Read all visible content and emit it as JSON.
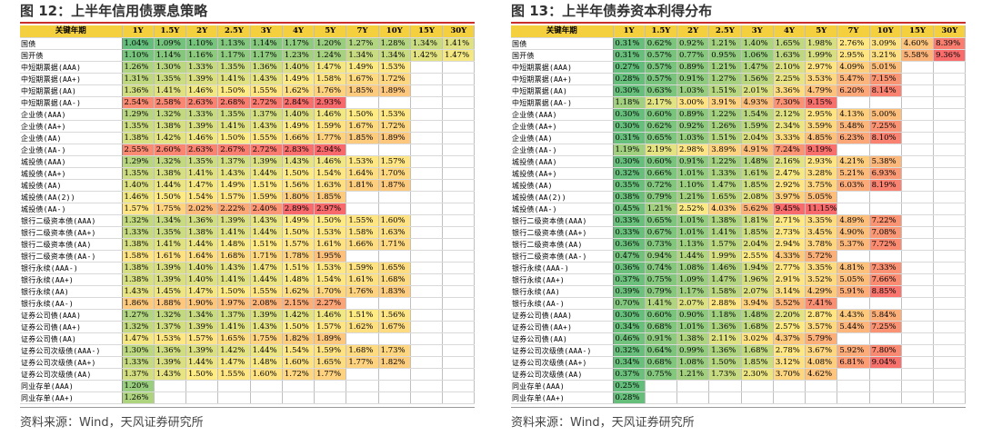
{
  "left": {
    "title": "图 12：上半年信用债票息策略",
    "corner": "关键年期",
    "columns": [
      "1Y",
      "1.5Y",
      "2Y",
      "2.5Y",
      "3Y",
      "4Y",
      "5Y",
      "7Y",
      "10Y",
      "15Y",
      "30Y"
    ],
    "rows": [
      {
        "label": "国债",
        "values": [
          "1.04%",
          "1.09%",
          "1.10%",
          "1.13%",
          "1.14%",
          "1.17%",
          "1.20%",
          "1.27%",
          "1.28%",
          "1.34%",
          "1.41%"
        ]
      },
      {
        "label": "国开债",
        "values": [
          "1.10%",
          "1.14%",
          "1.16%",
          "1.17%",
          "1.17%",
          "1.23%",
          "1.24%",
          "1.34%",
          "1.34%",
          "1.42%",
          "1.47%"
        ]
      },
      {
        "label": "中短期票据(AAA)",
        "values": [
          "1.26%",
          "1.30%",
          "1.33%",
          "1.35%",
          "1.36%",
          "1.40%",
          "1.47%",
          "1.49%",
          "1.53%",
          "",
          ""
        ],
        "group_start": true
      },
      {
        "label": "中短期票据(AA+)",
        "values": [
          "1.31%",
          "1.35%",
          "1.39%",
          "1.41%",
          "1.43%",
          "1.49%",
          "1.58%",
          "1.67%",
          "1.72%",
          "",
          ""
        ]
      },
      {
        "label": "中短期票据(AA)",
        "values": [
          "1.36%",
          "1.41%",
          "1.46%",
          "1.50%",
          "1.55%",
          "1.62%",
          "1.76%",
          "1.85%",
          "1.89%",
          "",
          ""
        ]
      },
      {
        "label": "中短期票据(AA-)",
        "values": [
          "2.54%",
          "2.58%",
          "2.63%",
          "2.68%",
          "2.72%",
          "2.84%",
          "2.93%",
          "",
          "",
          "",
          ""
        ]
      },
      {
        "label": "企业债(AAA)",
        "values": [
          "1.29%",
          "1.32%",
          "1.33%",
          "1.35%",
          "1.37%",
          "1.40%",
          "1.46%",
          "1.50%",
          "1.53%",
          "",
          ""
        ],
        "group_start": true
      },
      {
        "label": "企业债(AA+)",
        "values": [
          "1.35%",
          "1.38%",
          "1.39%",
          "1.41%",
          "1.43%",
          "1.49%",
          "1.59%",
          "1.67%",
          "1.72%",
          "",
          ""
        ]
      },
      {
        "label": "企业债(AA)",
        "values": [
          "1.38%",
          "1.42%",
          "1.46%",
          "1.50%",
          "1.55%",
          "1.66%",
          "1.77%",
          "1.85%",
          "1.89%",
          "",
          ""
        ]
      },
      {
        "label": "企业债(AA-)",
        "values": [
          "2.55%",
          "2.60%",
          "2.63%",
          "2.67%",
          "2.72%",
          "2.83%",
          "2.94%",
          "",
          "",
          "",
          ""
        ]
      },
      {
        "label": "城投债(AAA)",
        "values": [
          "1.29%",
          "1.32%",
          "1.35%",
          "1.37%",
          "1.39%",
          "1.43%",
          "1.46%",
          "1.53%",
          "1.57%",
          "",
          ""
        ],
        "group_start": true
      },
      {
        "label": "城投债(AA+)",
        "values": [
          "1.35%",
          "1.38%",
          "1.41%",
          "1.43%",
          "1.44%",
          "1.50%",
          "1.54%",
          "1.64%",
          "1.70%",
          "",
          ""
        ]
      },
      {
        "label": "城投债(AA)",
        "values": [
          "1.40%",
          "1.44%",
          "1.47%",
          "1.49%",
          "1.51%",
          "1.56%",
          "1.63%",
          "1.81%",
          "1.87%",
          "",
          ""
        ]
      },
      {
        "label": "城投债(AA(2))",
        "values": [
          "1.46%",
          "1.50%",
          "1.54%",
          "1.57%",
          "1.59%",
          "1.80%",
          "1.85%",
          "",
          "",
          "",
          ""
        ]
      },
      {
        "label": "城投债(AA-)",
        "values": [
          "1.57%",
          "1.75%",
          "2.02%",
          "2.22%",
          "2.40%",
          "2.89%",
          "2.97%",
          "",
          "",
          "",
          ""
        ]
      },
      {
        "label": "银行二级资本债(AAA)",
        "values": [
          "1.32%",
          "1.34%",
          "1.36%",
          "1.39%",
          "1.43%",
          "1.49%",
          "1.50%",
          "1.55%",
          "1.60%",
          "",
          ""
        ],
        "group_start": true
      },
      {
        "label": "银行二级资本债(AA+)",
        "values": [
          "1.33%",
          "1.35%",
          "1.38%",
          "1.41%",
          "1.44%",
          "1.50%",
          "1.53%",
          "1.58%",
          "1.63%",
          "",
          ""
        ]
      },
      {
        "label": "银行二级资本债(AA)",
        "values": [
          "1.38%",
          "1.41%",
          "1.44%",
          "1.48%",
          "1.51%",
          "1.57%",
          "1.61%",
          "1.66%",
          "1.71%",
          "",
          ""
        ]
      },
      {
        "label": "银行二级资本债(AA-)",
        "values": [
          "1.58%",
          "1.61%",
          "1.64%",
          "1.68%",
          "1.71%",
          "1.78%",
          "1.95%",
          "",
          "",
          "",
          ""
        ]
      },
      {
        "label": "银行永续(AAA-)",
        "values": [
          "1.38%",
          "1.39%",
          "1.40%",
          "1.43%",
          "1.47%",
          "1.51%",
          "1.53%",
          "1.59%",
          "1.65%",
          "",
          ""
        ],
        "group_start": true
      },
      {
        "label": "银行永续(AA+)",
        "values": [
          "1.38%",
          "1.39%",
          "1.40%",
          "1.41%",
          "1.44%",
          "1.48%",
          "1.54%",
          "1.61%",
          "1.68%",
          "",
          ""
        ]
      },
      {
        "label": "银行永续(AA)",
        "values": [
          "1.43%",
          "1.45%",
          "1.47%",
          "1.50%",
          "1.55%",
          "1.62%",
          "1.70%",
          "1.76%",
          "1.83%",
          "",
          ""
        ]
      },
      {
        "label": "银行永续(AA-)",
        "values": [
          "1.86%",
          "1.88%",
          "1.90%",
          "1.97%",
          "2.08%",
          "2.15%",
          "2.27%",
          "",
          "",
          "",
          ""
        ]
      },
      {
        "label": "证券公司债(AAA)",
        "values": [
          "1.27%",
          "1.32%",
          "1.34%",
          "1.37%",
          "1.39%",
          "1.42%",
          "1.46%",
          "1.51%",
          "1.56%",
          "",
          ""
        ],
        "group_start": true
      },
      {
        "label": "证券公司债(AA+)",
        "values": [
          "1.32%",
          "1.37%",
          "1.39%",
          "1.41%",
          "1.43%",
          "1.50%",
          "1.57%",
          "1.62%",
          "1.67%",
          "",
          ""
        ]
      },
      {
        "label": "证券公司债(AA)",
        "values": [
          "1.47%",
          "1.53%",
          "1.57%",
          "1.65%",
          "1.75%",
          "1.82%",
          "1.89%",
          "",
          "",
          "",
          ""
        ]
      },
      {
        "label": "证券公司次级债(AAA-)",
        "values": [
          "1.30%",
          "1.36%",
          "1.39%",
          "1.42%",
          "1.44%",
          "1.54%",
          "1.59%",
          "1.68%",
          "1.73%",
          "",
          ""
        ],
        "group_start": true
      },
      {
        "label": "证券公司次级债(AA+)",
        "values": [
          "1.33%",
          "1.39%",
          "1.44%",
          "1.47%",
          "1.48%",
          "1.60%",
          "1.65%",
          "1.77%",
          "1.82%",
          "",
          ""
        ]
      },
      {
        "label": "证券公司次级债(AA)",
        "values": [
          "1.37%",
          "1.43%",
          "1.50%",
          "1.55%",
          "1.60%",
          "1.72%",
          "1.77%",
          "",
          "",
          "",
          ""
        ]
      },
      {
        "label": "同业存单(AAA)",
        "values": [
          "1.20%",
          "",
          "",
          "",
          "",
          "",
          "",
          "",
          "",
          "",
          ""
        ],
        "group_start": true
      },
      {
        "label": "同业存单(AA+)",
        "values": [
          "1.26%",
          "",
          "",
          "",
          "",
          "",
          "",
          "",
          "",
          "",
          ""
        ]
      }
    ],
    "source": "资料来源：Wind，天风证券研究所"
  },
  "right": {
    "title": "图 13：上半年债券资本利得分布",
    "corner": "关键年期",
    "columns": [
      "1Y",
      "1.5Y",
      "2Y",
      "2.5Y",
      "3Y",
      "4Y",
      "5Y",
      "7Y",
      "10Y",
      "15Y",
      "30Y"
    ],
    "rows": [
      {
        "label": "国债",
        "values": [
          "0.31%",
          "0.62%",
          "0.92%",
          "1.21%",
          "1.40%",
          "1.65%",
          "1.98%",
          "2.76%",
          "3.09%",
          "4.60%",
          "8.39%"
        ]
      },
      {
        "label": "国开债",
        "values": [
          "0.31%",
          "0.57%",
          "0.77%",
          "0.95%",
          "1.06%",
          "1.63%",
          "1.99%",
          "2.95%",
          "3.21%",
          "5.58%",
          "9.36%"
        ]
      },
      {
        "label": "中短期票据(AAA)",
        "values": [
          "0.27%",
          "0.57%",
          "0.89%",
          "1.21%",
          "1.47%",
          "2.10%",
          "2.97%",
          "4.09%",
          "5.01%",
          "",
          ""
        ],
        "group_start": true
      },
      {
        "label": "中短期票据(AA+)",
        "values": [
          "0.28%",
          "0.57%",
          "0.91%",
          "1.27%",
          "1.56%",
          "2.25%",
          "3.53%",
          "5.47%",
          "7.15%",
          "",
          ""
        ]
      },
      {
        "label": "中短期票据(AA)",
        "values": [
          "0.30%",
          "0.63%",
          "1.03%",
          "1.51%",
          "2.01%",
          "3.36%",
          "4.79%",
          "6.20%",
          "8.14%",
          "",
          ""
        ]
      },
      {
        "label": "中短期票据(AA-)",
        "values": [
          "1.18%",
          "2.17%",
          "3.00%",
          "3.91%",
          "4.93%",
          "7.30%",
          "9.15%",
          "",
          "",
          "",
          ""
        ]
      },
      {
        "label": "企业债(AAA)",
        "values": [
          "0.30%",
          "0.60%",
          "0.89%",
          "1.22%",
          "1.54%",
          "2.12%",
          "2.95%",
          "4.13%",
          "5.00%",
          "",
          ""
        ],
        "group_start": true
      },
      {
        "label": "企业债(AA+)",
        "values": [
          "0.30%",
          "0.62%",
          "0.92%",
          "1.26%",
          "1.59%",
          "2.34%",
          "3.59%",
          "5.48%",
          "7.25%",
          "",
          ""
        ]
      },
      {
        "label": "企业债(AA)",
        "values": [
          "0.31%",
          "0.65%",
          "1.03%",
          "1.51%",
          "2.04%",
          "3.33%",
          "4.85%",
          "6.23%",
          "8.10%",
          "",
          ""
        ]
      },
      {
        "label": "企业债(AA-)",
        "values": [
          "1.19%",
          "2.19%",
          "2.98%",
          "3.89%",
          "4.91%",
          "7.24%",
          "9.19%",
          "",
          "",
          "",
          ""
        ]
      },
      {
        "label": "城投债(AAA)",
        "values": [
          "0.30%",
          "0.60%",
          "0.91%",
          "1.22%",
          "1.48%",
          "2.16%",
          "2.93%",
          "4.21%",
          "5.38%",
          "",
          ""
        ],
        "group_start": true
      },
      {
        "label": "城投债(AA+)",
        "values": [
          "0.32%",
          "0.66%",
          "1.01%",
          "1.33%",
          "1.61%",
          "2.47%",
          "3.28%",
          "5.21%",
          "6.93%",
          "",
          ""
        ]
      },
      {
        "label": "城投债(AA)",
        "values": [
          "0.35%",
          "0.72%",
          "1.10%",
          "1.47%",
          "1.85%",
          "2.92%",
          "3.75%",
          "6.03%",
          "8.19%",
          "",
          ""
        ]
      },
      {
        "label": "城投债(AA(2))",
        "values": [
          "0.38%",
          "0.79%",
          "1.21%",
          "1.65%",
          "2.08%",
          "3.97%",
          "5.05%",
          "",
          "",
          "",
          ""
        ]
      },
      {
        "label": "城投债(AA-)",
        "values": [
          "0.45%",
          "1.21%",
          "2.52%",
          "4.03%",
          "5.62%",
          "9.45%",
          "11.15%",
          "",
          "",
          "",
          ""
        ]
      },
      {
        "label": "银行二级资本债(AAA)",
        "values": [
          "0.33%",
          "0.65%",
          "1.01%",
          "1.38%",
          "1.81%",
          "2.71%",
          "3.35%",
          "4.89%",
          "7.22%",
          "",
          ""
        ],
        "group_start": true
      },
      {
        "label": "银行二级资本债(AA+)",
        "values": [
          "0.33%",
          "0.67%",
          "1.01%",
          "1.41%",
          "1.85%",
          "2.73%",
          "3.45%",
          "4.90%",
          "7.08%",
          "",
          ""
        ]
      },
      {
        "label": "银行二级资本债(AA)",
        "values": [
          "0.36%",
          "0.73%",
          "1.13%",
          "1.57%",
          "2.04%",
          "2.94%",
          "3.78%",
          "5.37%",
          "7.72%",
          "",
          ""
        ]
      },
      {
        "label": "银行二级资本债(AA-)",
        "values": [
          "0.47%",
          "0.94%",
          "1.44%",
          "1.99%",
          "2.55%",
          "4.33%",
          "5.72%",
          "",
          "",
          "",
          ""
        ]
      },
      {
        "label": "银行永续(AAA-)",
        "values": [
          "0.36%",
          "0.74%",
          "1.08%",
          "1.46%",
          "1.94%",
          "2.77%",
          "3.35%",
          "4.81%",
          "7.33%",
          "",
          ""
        ],
        "group_start": true
      },
      {
        "label": "银行永续(AA+)",
        "values": [
          "0.37%",
          "0.75%",
          "1.09%",
          "1.47%",
          "1.96%",
          "2.91%",
          "3.52%",
          "5.05%",
          "7.66%",
          "",
          ""
        ]
      },
      {
        "label": "银行永续(AA)",
        "values": [
          "0.39%",
          "0.79%",
          "1.17%",
          "1.58%",
          "2.07%",
          "3.14%",
          "4.29%",
          "5.91%",
          "8.85%",
          "",
          ""
        ]
      },
      {
        "label": "银行永续(AA-)",
        "values": [
          "0.70%",
          "1.41%",
          "2.07%",
          "2.88%",
          "3.94%",
          "5.52%",
          "7.41%",
          "",
          "",
          "",
          ""
        ]
      },
      {
        "label": "证券公司债(AAA)",
        "values": [
          "0.30%",
          "0.60%",
          "0.90%",
          "1.18%",
          "1.48%",
          "2.20%",
          "2.87%",
          "4.43%",
          "5.84%",
          "",
          ""
        ],
        "group_start": true
      },
      {
        "label": "证券公司债(AA+)",
        "values": [
          "0.34%",
          "0.68%",
          "1.01%",
          "1.36%",
          "1.68%",
          "2.57%",
          "3.57%",
          "5.44%",
          "7.25%",
          "",
          ""
        ]
      },
      {
        "label": "证券公司债(AA)",
        "values": [
          "0.46%",
          "0.91%",
          "1.38%",
          "2.11%",
          "3.02%",
          "4.37%",
          "5.79%",
          "",
          "",
          "",
          ""
        ]
      },
      {
        "label": "证券公司次级债(AAA-)",
        "values": [
          "0.32%",
          "0.64%",
          "0.99%",
          "1.36%",
          "1.68%",
          "2.78%",
          "3.67%",
          "5.92%",
          "7.80%",
          "",
          ""
        ],
        "group_start": true
      },
      {
        "label": "证券公司次级债(AA+)",
        "values": [
          "0.34%",
          "0.68%",
          "1.08%",
          "1.50%",
          "1.85%",
          "3.12%",
          "4.08%",
          "6.81%",
          "9.04%",
          "",
          ""
        ]
      },
      {
        "label": "证券公司次级债(AA)",
        "values": [
          "0.37%",
          "0.75%",
          "1.21%",
          "1.73%",
          "2.30%",
          "3.70%",
          "4.62%",
          "",
          "",
          "",
          ""
        ]
      },
      {
        "label": "同业存单(AAA)",
        "values": [
          "0.25%",
          "",
          "",
          "",
          "",
          "",
          "",
          "",
          "",
          "",
          ""
        ],
        "group_start": true
      },
      {
        "label": "同业存单(AA+)",
        "values": [
          "0.28%",
          "",
          "",
          "",
          "",
          "",
          "",
          "",
          "",
          "",
          ""
        ]
      }
    ],
    "source": "资料来源：Wind，天风证券研究所"
  },
  "colors": {
    "header_yellow": "#f4d03f",
    "scale_low_green": "#63be7b",
    "scale_mid_yellow": "#ffeb84",
    "scale_high_red": "#f8696b"
  }
}
